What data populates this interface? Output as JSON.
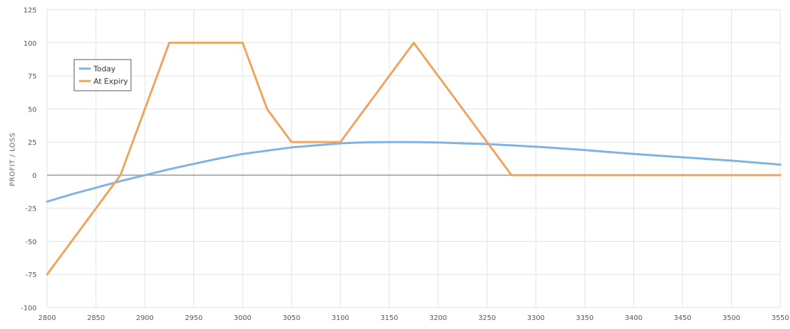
{
  "chart_data": {
    "type": "line",
    "title": "",
    "xlabel": "",
    "ylabel": "PROFIT / LOSS",
    "xlim": [
      2800,
      3550
    ],
    "ylim": [
      -100,
      125
    ],
    "x_ticks": [
      2800,
      2850,
      2900,
      2950,
      3000,
      3050,
      3100,
      3150,
      3200,
      3250,
      3300,
      3350,
      3400,
      3450,
      3500,
      3550
    ],
    "y_ticks": [
      -100,
      -75,
      -50,
      -25,
      0,
      25,
      50,
      75,
      100,
      125
    ],
    "grid": true,
    "legend_position": "top-left",
    "series": [
      {
        "name": "Today",
        "color": "#7fb3e3",
        "x": [
          2800,
          2825,
          2850,
          2875,
          2900,
          2925,
          2950,
          2975,
          3000,
          3025,
          3050,
          3075,
          3100,
          3125,
          3150,
          3175,
          3200,
          3225,
          3250,
          3275,
          3300,
          3350,
          3400,
          3450,
          3500,
          3550
        ],
        "y": [
          -20,
          -14.5,
          -9.5,
          -4.5,
          0,
          4.5,
          8.5,
          12.5,
          16,
          18.5,
          21,
          22.5,
          24,
          24.8,
          25,
          25,
          24.7,
          24,
          23.5,
          22.5,
          21.5,
          19,
          16,
          13.5,
          11,
          8
        ]
      },
      {
        "name": "At Expiry",
        "color": "#f0a35c",
        "x": [
          2800,
          2875,
          2925,
          3000,
          3025,
          3050,
          3100,
          3175,
          3275,
          3550
        ],
        "y": [
          -75,
          0,
          100,
          100,
          50,
          25,
          25,
          100,
          0,
          0
        ]
      }
    ]
  }
}
